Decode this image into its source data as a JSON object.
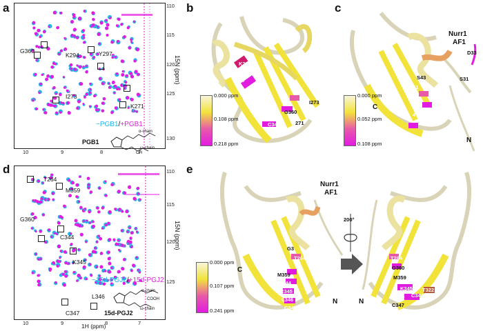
{
  "panels": {
    "a": "a",
    "b": "b",
    "c": "c",
    "d": "d",
    "e": "e"
  },
  "spec_a": {
    "y_ticks": [
      "110",
      "115",
      "120",
      "125",
      "130"
    ],
    "x_ticks": [
      "10",
      "9",
      "8",
      "7"
    ],
    "y_axis": "15N (ppm)",
    "legend_minus": "−PGB1",
    "legend_sep": "/",
    "legend_plus": "+PGB1",
    "compound": "PGB1",
    "chain_alpha": "α-chain",
    "chain_omega": "ω-chain",
    "oh": "OH",
    "residues": [
      "G360",
      "K294",
      "Y297",
      "I273",
      "K271"
    ]
  },
  "spec_d": {
    "y_ticks": [
      "110",
      "115",
      "120",
      "125"
    ],
    "x_ticks": [
      "10",
      "9",
      "8",
      "7"
    ],
    "y_axis": "15N (ppm)",
    "x_axis": "1H (ppm)",
    "legend_minus": "−15d-PGJ2",
    "legend_sep": "/",
    "legend_plus": "+15d-PGJ2",
    "compound": "15d-PGJ2",
    "chain_alpha": "α-chain",
    "chain_omega": "ω-chain",
    "cooh": "COOH",
    "residues": [
      "T264",
      "M359",
      "G360",
      "C344",
      "K345",
      "L346",
      "C347"
    ]
  },
  "colorbar_b": {
    "max": "0.218 ppm",
    "mid": "0.108 ppm",
    "min": "0.000 ppm"
  },
  "colorbar_c": {
    "max": "0.108 ppm",
    "mid": "0.052 ppm",
    "min": "0.000 ppm"
  },
  "colorbar_e": {
    "max": "0.241 ppm",
    "mid": "0.107 ppm",
    "min": "0.000 ppm"
  },
  "struct_b": {
    "residues": [
      "K294",
      "Y297",
      "G360",
      "I273",
      "C344",
      "271"
    ]
  },
  "struct_c": {
    "title1": "Nurr1",
    "title2": "AF1",
    "residues": [
      "D33",
      "S43",
      "S31",
      "M61",
      "G",
      "4"
    ],
    "c_term": "C",
    "n_term": "N"
  },
  "struct_e": {
    "title1": "Nurr1",
    "title2": "AF1",
    "rotation": "200°",
    "left_residues": [
      "G3",
      "T264",
      "M359",
      "C344",
      "C345",
      "L346",
      "C347"
    ],
    "right_residues": [
      "T264",
      "G360",
      "M359",
      "K345",
      "C344",
      "C347",
      "T322"
    ],
    "c_term": "C",
    "n_left": "N",
    "n_right": "N"
  },
  "colors": {
    "cyan": "#26b6e6",
    "magenta": "#e21be0",
    "yellow": "#f2e33a",
    "ribbon": "#d9d3b8"
  }
}
